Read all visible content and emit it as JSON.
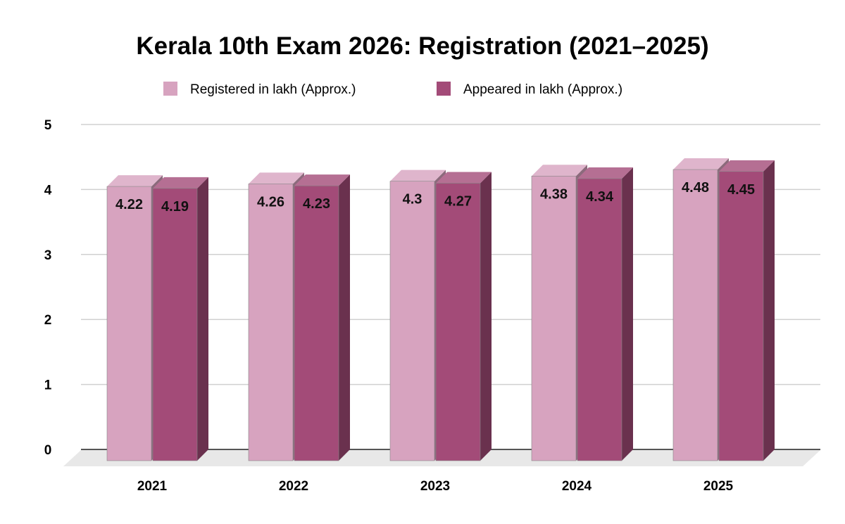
{
  "chart_data": {
    "type": "bar",
    "title": "Kerala 10th Exam 2026: Registration (2021–2025)",
    "xlabel": "",
    "ylabel": "",
    "categories": [
      "2021",
      "2022",
      "2023",
      "2024",
      "2025"
    ],
    "series": [
      {
        "name": "Registered in lakh (Approx.)",
        "values": [
          4.22,
          4.26,
          4.3,
          4.38,
          4.48
        ],
        "color": "#d7a3bf"
      },
      {
        "name": "Appeared in lakh (Approx.)",
        "values": [
          4.19,
          4.23,
          4.27,
          4.34,
          4.45
        ],
        "color": "#a34b78"
      }
    ],
    "yticks": [
      "0",
      "1",
      "2",
      "3",
      "4",
      "5"
    ],
    "ylim": [
      0,
      5
    ],
    "grid": true,
    "legend": "top",
    "style": "3d-column"
  }
}
